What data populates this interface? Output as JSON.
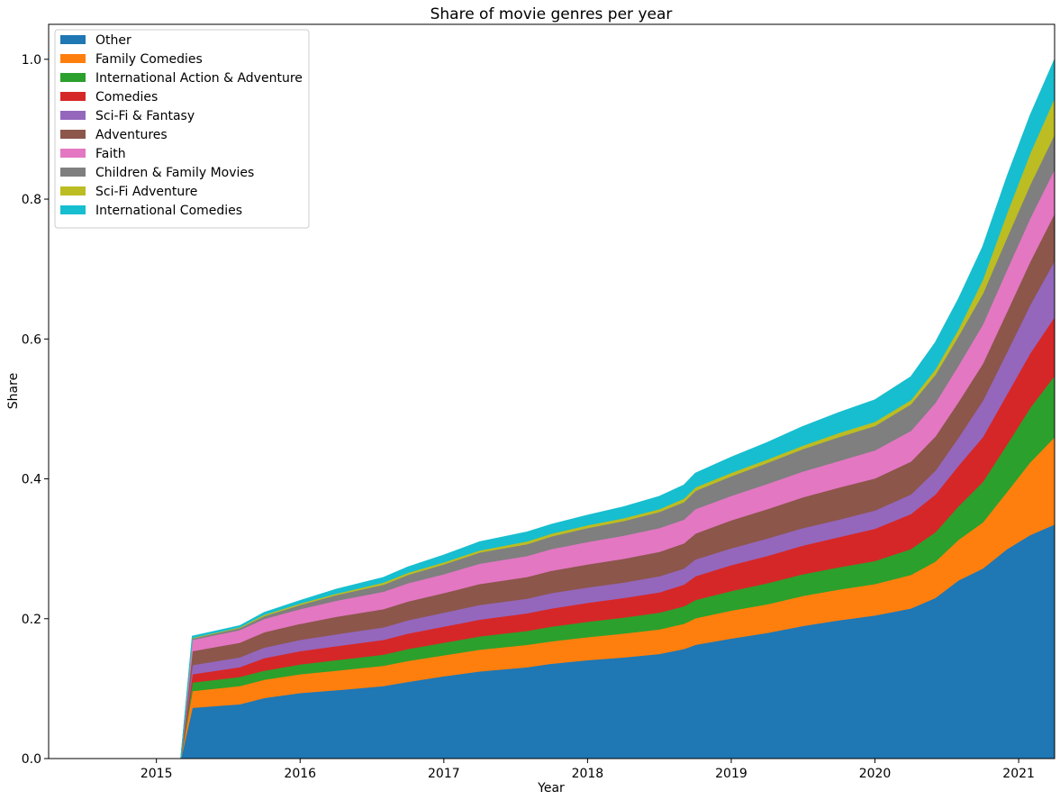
{
  "chart_data": {
    "type": "area",
    "stacked": true,
    "title": "Share of movie genres per year",
    "xlabel": "Year",
    "ylabel": "Share",
    "xlim": [
      2014.25,
      2021.25
    ],
    "ylim": [
      0,
      1.05
    ],
    "xticks": [
      2015,
      2016,
      2017,
      2018,
      2019,
      2020,
      2021
    ],
    "xtick_labels": [
      "2015",
      "2016",
      "2017",
      "2018",
      "2019",
      "2020",
      "2021"
    ],
    "yticks": [
      0.0,
      0.2,
      0.4,
      0.6,
      0.8,
      1.0
    ],
    "ytick_labels": [
      "0.0",
      "0.2",
      "0.4",
      "0.6",
      "0.8",
      "1.0"
    ],
    "legend_position": "top-left",
    "grid": false,
    "x": [
      2014.25,
      2015.17,
      2015.25,
      2015.58,
      2015.75,
      2016.0,
      2016.25,
      2016.58,
      2016.75,
      2017.0,
      2017.25,
      2017.58,
      2017.75,
      2018.0,
      2018.25,
      2018.5,
      2018.67,
      2018.75,
      2019.0,
      2019.25,
      2019.5,
      2019.75,
      2020.0,
      2020.25,
      2020.42,
      2020.58,
      2020.75,
      2020.92,
      2021.08,
      2021.25
    ],
    "series": [
      {
        "name": "Other",
        "color": "#1f77b4",
        "values": [
          0,
          0,
          0.073,
          0.078,
          0.087,
          0.094,
          0.098,
          0.104,
          0.11,
          0.118,
          0.125,
          0.131,
          0.136,
          0.141,
          0.145,
          0.15,
          0.157,
          0.163,
          0.172,
          0.18,
          0.19,
          0.198,
          0.205,
          0.215,
          0.23,
          0.255,
          0.272,
          0.3,
          0.32,
          0.335
        ]
      },
      {
        "name": "Family Comedies",
        "color": "#ff7f0e",
        "values": [
          0,
          0,
          0.024,
          0.026,
          0.026,
          0.027,
          0.028,
          0.029,
          0.03,
          0.03,
          0.031,
          0.032,
          0.032,
          0.033,
          0.034,
          0.035,
          0.036,
          0.038,
          0.04,
          0.041,
          0.043,
          0.044,
          0.045,
          0.048,
          0.052,
          0.058,
          0.066,
          0.082,
          0.104,
          0.125
        ]
      },
      {
        "name": "International Action & Adventure",
        "color": "#2ca02c",
        "values": [
          0,
          0,
          0.012,
          0.013,
          0.013,
          0.014,
          0.015,
          0.016,
          0.017,
          0.018,
          0.019,
          0.02,
          0.021,
          0.022,
          0.023,
          0.024,
          0.025,
          0.026,
          0.028,
          0.03,
          0.031,
          0.032,
          0.033,
          0.037,
          0.042,
          0.048,
          0.058,
          0.068,
          0.078,
          0.088
        ]
      },
      {
        "name": "Comedies",
        "color": "#d62728",
        "values": [
          0,
          0,
          0.012,
          0.014,
          0.018,
          0.019,
          0.02,
          0.021,
          0.022,
          0.023,
          0.024,
          0.025,
          0.026,
          0.027,
          0.028,
          0.029,
          0.031,
          0.034,
          0.037,
          0.039,
          0.041,
          0.043,
          0.046,
          0.05,
          0.054,
          0.058,
          0.064,
          0.072,
          0.078,
          0.084
        ]
      },
      {
        "name": "Sci-Fi & Fantasy",
        "color": "#9467bd",
        "values": [
          0,
          0,
          0.013,
          0.014,
          0.015,
          0.016,
          0.017,
          0.018,
          0.019,
          0.02,
          0.021,
          0.021,
          0.022,
          0.022,
          0.022,
          0.023,
          0.023,
          0.024,
          0.024,
          0.025,
          0.025,
          0.025,
          0.026,
          0.028,
          0.034,
          0.04,
          0.052,
          0.06,
          0.069,
          0.08
        ]
      },
      {
        "name": "Adventures",
        "color": "#8c564b",
        "values": [
          0,
          0,
          0.02,
          0.021,
          0.022,
          0.023,
          0.025,
          0.026,
          0.027,
          0.028,
          0.03,
          0.031,
          0.032,
          0.033,
          0.034,
          0.035,
          0.036,
          0.037,
          0.04,
          0.042,
          0.044,
          0.046,
          0.046,
          0.047,
          0.049,
          0.051,
          0.053,
          0.058,
          0.062,
          0.068
        ]
      },
      {
        "name": "Faith",
        "color": "#e377c2",
        "values": [
          0,
          0,
          0.016,
          0.018,
          0.019,
          0.021,
          0.023,
          0.025,
          0.026,
          0.027,
          0.029,
          0.03,
          0.031,
          0.032,
          0.033,
          0.034,
          0.034,
          0.035,
          0.035,
          0.036,
          0.037,
          0.038,
          0.04,
          0.044,
          0.048,
          0.052,
          0.056,
          0.06,
          0.062,
          0.063
        ]
      },
      {
        "name": "Children & Family Movies",
        "color": "#7f7f7f",
        "values": [
          0,
          0,
          0.002,
          0.003,
          0.004,
          0.006,
          0.008,
          0.01,
          0.012,
          0.014,
          0.016,
          0.017,
          0.018,
          0.02,
          0.021,
          0.023,
          0.025,
          0.026,
          0.028,
          0.03,
          0.032,
          0.034,
          0.035,
          0.038,
          0.04,
          0.042,
          0.044,
          0.046,
          0.048,
          0.05
        ]
      },
      {
        "name": "Sci-Fi Adventure",
        "color": "#bcbd22",
        "values": [
          0,
          0,
          0.001,
          0.001,
          0.002,
          0.002,
          0.002,
          0.003,
          0.003,
          0.003,
          0.003,
          0.004,
          0.004,
          0.004,
          0.004,
          0.004,
          0.005,
          0.005,
          0.005,
          0.005,
          0.005,
          0.006,
          0.006,
          0.006,
          0.008,
          0.01,
          0.02,
          0.035,
          0.045,
          0.052
        ]
      },
      {
        "name": "International Comedies",
        "color": "#17becf",
        "values": [
          0,
          0,
          0.002,
          0.002,
          0.003,
          0.004,
          0.006,
          0.007,
          0.008,
          0.01,
          0.012,
          0.013,
          0.013,
          0.014,
          0.016,
          0.018,
          0.019,
          0.02,
          0.022,
          0.024,
          0.027,
          0.029,
          0.031,
          0.033,
          0.038,
          0.043,
          0.047,
          0.052,
          0.054,
          0.055
        ]
      }
    ]
  }
}
